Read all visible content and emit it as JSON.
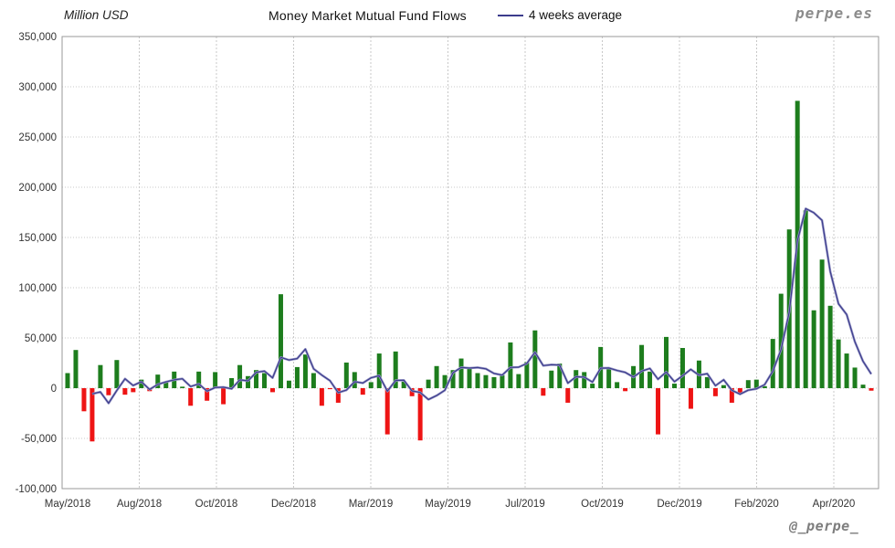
{
  "header": {
    "unit_label": "Million USD",
    "title": "Money Market Mutual Fund Flows",
    "legend_label": "4 weeks average",
    "watermark": "perpe.es"
  },
  "footer": {
    "watermark": "@_perpe_"
  },
  "colors": {
    "positive_bar": "#1d7d1d",
    "negative_bar": "#ee1414",
    "average_line_core": "#3c3c8c",
    "average_line_halo": "#9a9ac8",
    "grid": "#c8c8c8",
    "plot_border": "#9a9a9a",
    "tick_text": "#333333"
  },
  "chart_data": {
    "type": "bar",
    "title": "Money Market Mutual Fund Flows",
    "ylabel": "Million USD",
    "ylim": [
      -100000,
      350000
    ],
    "grid": true,
    "legend_position": "top",
    "x_labels": [
      "May/2018",
      "Aug/2018",
      "Oct/2018",
      "Dec/2018",
      "Mar/2019",
      "May/2019",
      "Jul/2019",
      "Oct/2019",
      "Dec/2019",
      "Feb/2020",
      "Apr/2020"
    ],
    "y_ticks": [
      {
        "label": "350,000",
        "value": 350000
      },
      {
        "label": "300,000",
        "value": 300000
      },
      {
        "label": "250,000",
        "value": 250000
      },
      {
        "label": "200,000",
        "value": 200000
      },
      {
        "label": "150,000",
        "value": 150000
      },
      {
        "label": "100,000",
        "value": 100000
      },
      {
        "label": "50,000",
        "value": 50000
      },
      {
        "label": "0",
        "value": 0
      },
      {
        "label": "-50,000",
        "value": -50000
      },
      {
        "label": "-100,000",
        "value": -100000
      }
    ],
    "series": [
      {
        "name": "Weekly money market mutual fund flows",
        "type": "bar",
        "values": [
          15000,
          38000,
          -23000,
          -53000,
          23000,
          -7000,
          28000,
          -6500,
          -4000,
          8500,
          -3000,
          13500,
          6000,
          16500,
          1500,
          -17500,
          16500,
          -12500,
          16000,
          -16000,
          10000,
          23000,
          12000,
          18000,
          15000,
          -4000,
          93500,
          7500,
          21000,
          33500,
          15000,
          -17500,
          -1000,
          -14500,
          25500,
          16000,
          -6500,
          6000,
          34500,
          -46000,
          36500,
          6500,
          -8000,
          -52000,
          8500,
          22000,
          13000,
          18000,
          29500,
          19500,
          15000,
          13000,
          11000,
          13000,
          45500,
          14000,
          26000,
          57500,
          -7500,
          17500,
          24500,
          -14500,
          18000,
          16000,
          4500,
          41000,
          19000,
          6000,
          -3000,
          22000,
          43000,
          16500,
          -46000,
          51000,
          4500,
          40000,
          -20500,
          27500,
          11000,
          -8000,
          3000,
          -14500,
          -4500,
          8000,
          8500,
          2000,
          49000,
          94000,
          158000,
          286000,
          177000,
          77500,
          128000,
          82000,
          48500,
          34500,
          20500,
          3500,
          -2500
        ]
      },
      {
        "name": "4 weeks average",
        "type": "line",
        "derivation": "trailing 4-week mean of weekly flows"
      }
    ]
  }
}
